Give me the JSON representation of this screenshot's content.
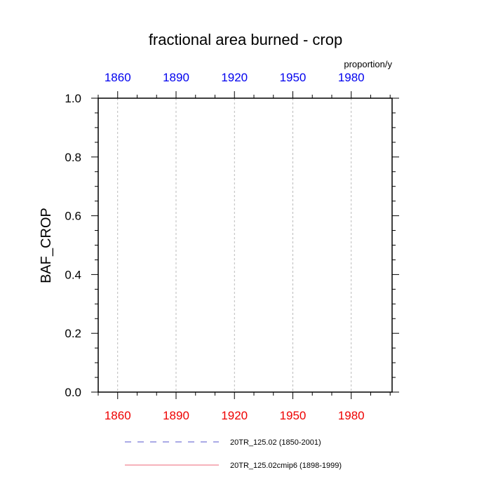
{
  "chart_data": {
    "type": "line",
    "title": "fractional area burned - crop",
    "ylabel": "BAF_CROP",
    "units": "proportion/y",
    "xlim": [
      1850,
      2001
    ],
    "ylim": [
      0,
      1
    ],
    "x_ticks_major": [
      1860,
      1890,
      1920,
      1950,
      1980
    ],
    "x_tick_labels": [
      "1860",
      "1890",
      "1920",
      "1950",
      "1980"
    ],
    "y_ticks_major": [
      0,
      0.2,
      0.4,
      0.6,
      0.8,
      1.0
    ],
    "y_tick_labels": [
      "0.0",
      "0.2",
      "0.4",
      "0.6",
      "0.8",
      "1.0"
    ],
    "grid": true,
    "legend_position": "bottom",
    "top_axis_color": "#0000ee",
    "bottom_axis_color": "#ee0000",
    "series": [
      {
        "name": "20TR_125.02 (1850-2001)",
        "color": "#5555cc",
        "style": "dashed",
        "x_range": [
          1850,
          2001
        ],
        "values": [
          0,
          0
        ]
      },
      {
        "name": "20TR_125.02cmip6 (1898-1999)",
        "color": "#ee6677",
        "style": "solid",
        "x_range": [
          1898,
          1999
        ],
        "values": [
          0,
          0
        ]
      }
    ]
  }
}
